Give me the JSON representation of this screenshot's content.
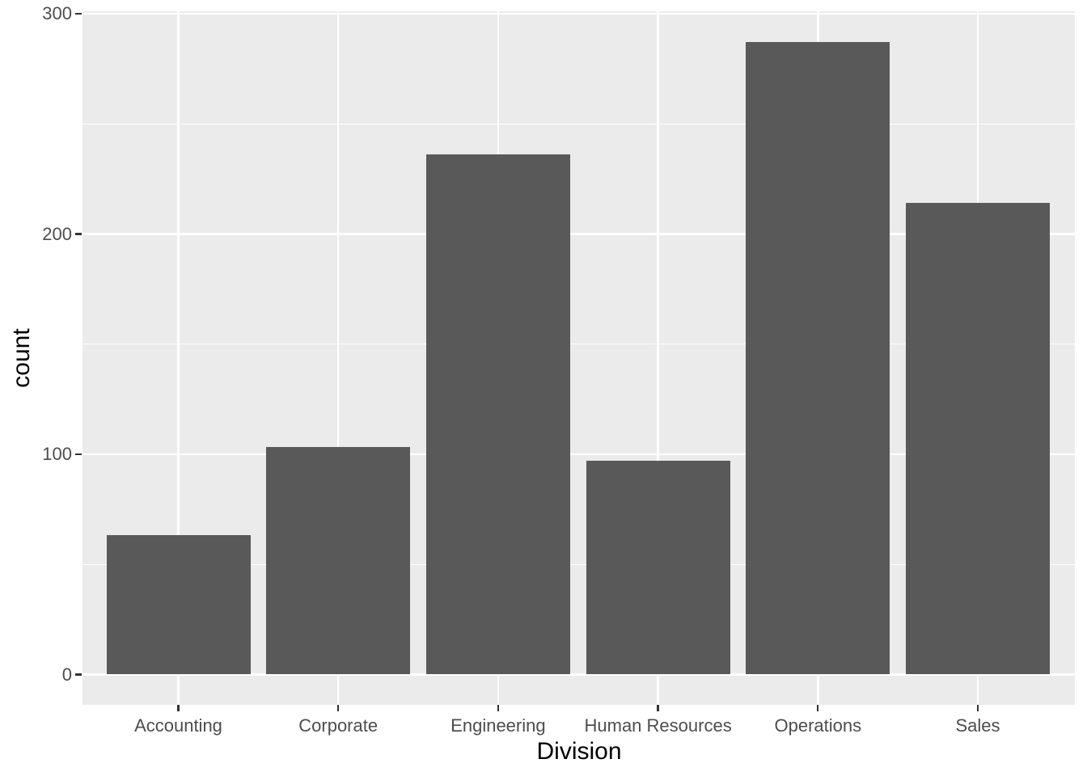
{
  "chart_data": {
    "type": "bar",
    "title": "",
    "xlabel": "Division",
    "ylabel": "count",
    "categories": [
      "Accounting",
      "Corporate",
      "Engineering",
      "Human Resources",
      "Operations",
      "Sales"
    ],
    "values": [
      63,
      103,
      236,
      97,
      287,
      214
    ],
    "yticks": [
      0,
      100,
      200,
      300
    ],
    "yticks_minor": [
      50,
      150,
      250
    ],
    "ylim": [
      0,
      300
    ],
    "grid": "horizontal major+minor, vertical major at category centers",
    "legend": "none",
    "theme": "ggplot2 grey"
  },
  "colors": {
    "bar_fill": "#595959",
    "panel_bg": "#EBEBEB",
    "gridline": "#FFFFFF",
    "tick_mark": "#333333",
    "tick_label": "#4D4D4D",
    "axis_title": "#000000",
    "background": "#FFFFFF"
  }
}
